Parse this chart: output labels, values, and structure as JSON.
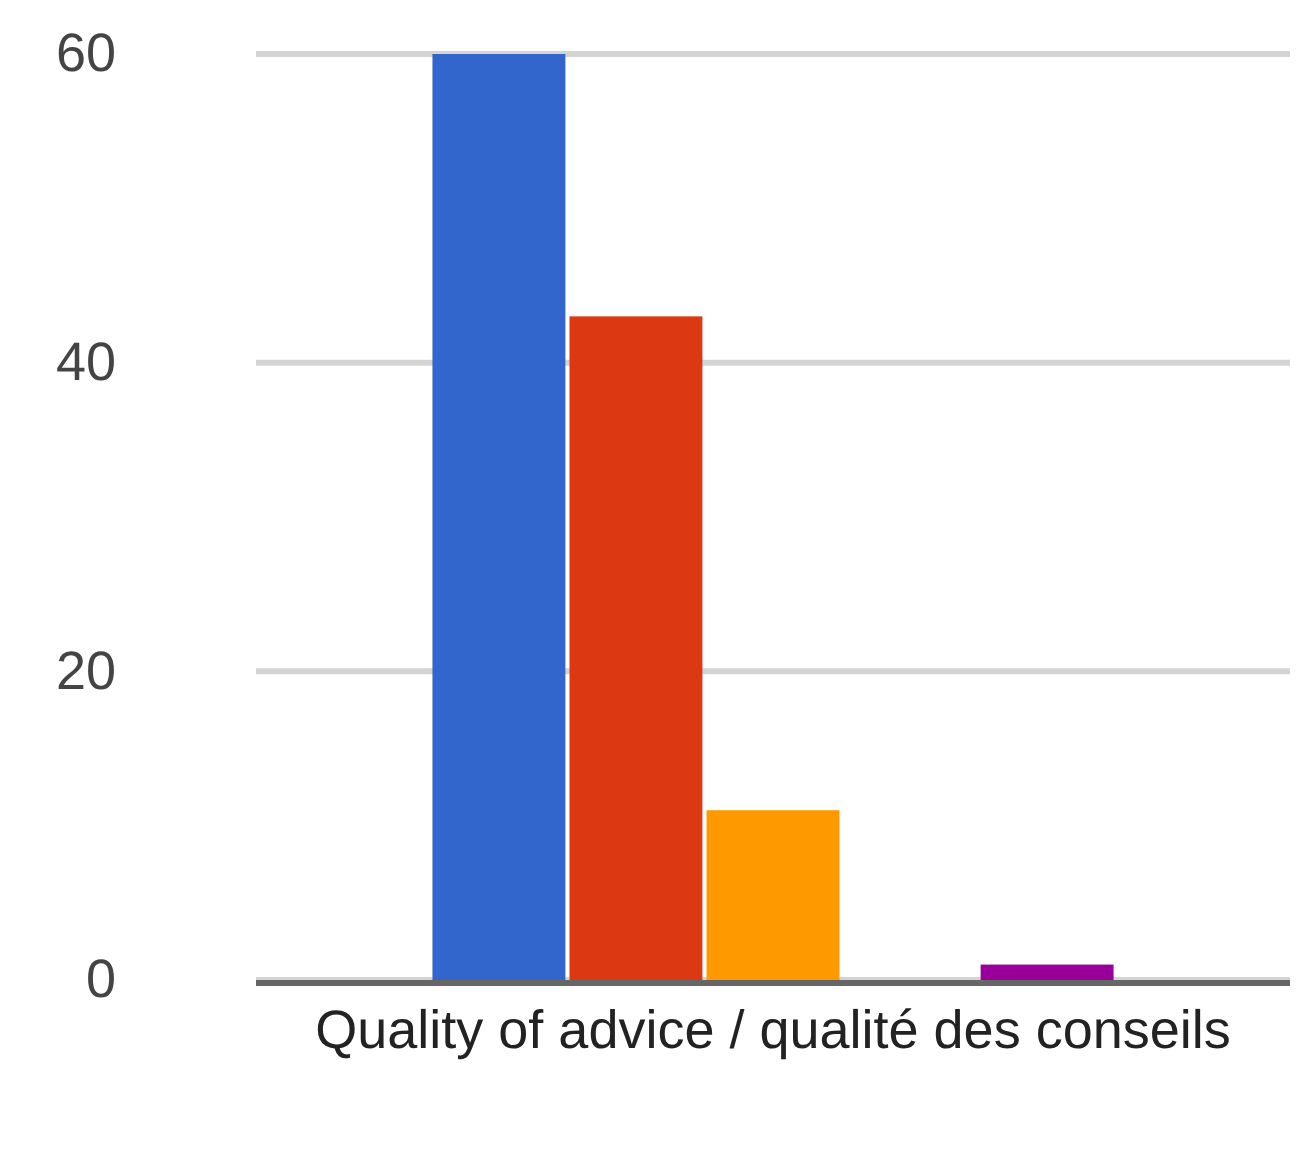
{
  "chart_data": {
    "type": "bar",
    "categories": [
      "Quality of advice / qualité des conseils"
    ],
    "series": [
      {
        "color": "#3366cc",
        "values": [
          60
        ]
      },
      {
        "color": "#dc3912",
        "values": [
          43
        ]
      },
      {
        "color": "#ff9900",
        "values": [
          11
        ]
      },
      {
        "color": "#109618",
        "values": [
          0
        ]
      },
      {
        "color": "#990099",
        "values": [
          1
        ]
      }
    ],
    "ylim": [
      0,
      60
    ],
    "yticks": [
      0,
      20,
      40,
      60
    ],
    "grid": "y"
  }
}
